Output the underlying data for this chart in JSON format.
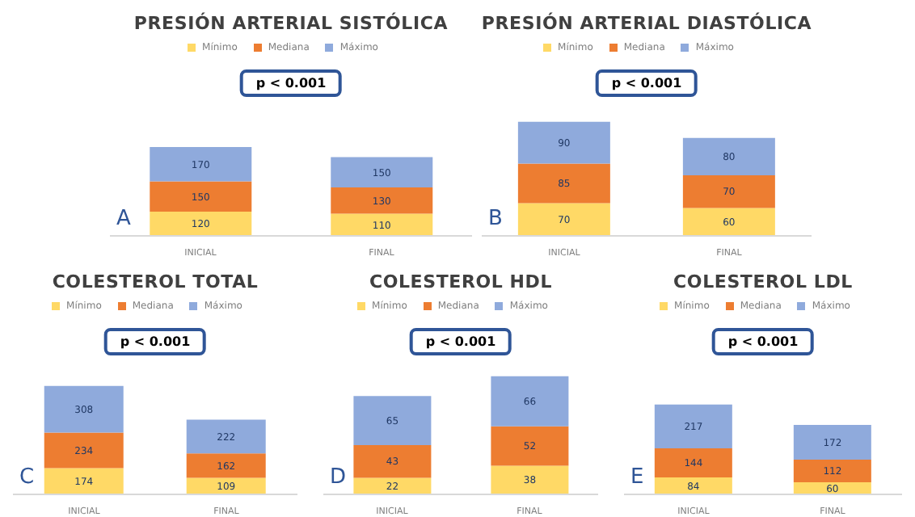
{
  "chart_data": [
    {
      "type": "bar",
      "title": "PRESIÓN ARTERIAL SISTÓLICA",
      "categories": [
        "INICIAL",
        "FINAL"
      ],
      "stacked": true,
      "data_labels": true,
      "legend": "top",
      "annotations": [
        "p < 0.001",
        "A"
      ],
      "series": [
        {
          "name": "Mínimo",
          "color": "#ffd966",
          "values": [
            120,
            110
          ]
        },
        {
          "name": "Mediana",
          "color": "#ed7d31",
          "values": [
            150,
            130
          ]
        },
        {
          "name": "Máximo",
          "color": "#8faadc",
          "values": [
            170,
            150
          ]
        }
      ]
    },
    {
      "type": "bar",
      "title": "PRESIÓN ARTERIAL DIASTÓLICA",
      "categories": [
        "INICIAL",
        "FINAL"
      ],
      "stacked": true,
      "data_labels": true,
      "legend": "top",
      "annotations": [
        "p < 0.001",
        "B"
      ],
      "series": [
        {
          "name": "Mínimo",
          "color": "#ffd966",
          "values": [
            70,
            60
          ]
        },
        {
          "name": "Mediana",
          "color": "#ed7d31",
          "values": [
            85,
            70
          ]
        },
        {
          "name": "Máximo",
          "color": "#8faadc",
          "values": [
            90,
            80
          ]
        }
      ]
    },
    {
      "type": "bar",
      "title": "COLESTEROL TOTAL",
      "categories": [
        "INICIAL",
        "FINAL"
      ],
      "stacked": true,
      "data_labels": true,
      "legend": "top",
      "annotations": [
        "p < 0.001",
        "C"
      ],
      "series": [
        {
          "name": "Mínimo",
          "color": "#ffd966",
          "values": [
            174,
            109
          ]
        },
        {
          "name": "Mediana",
          "color": "#ed7d31",
          "values": [
            234,
            162
          ]
        },
        {
          "name": "Máximo",
          "color": "#8faadc",
          "values": [
            308,
            222
          ]
        }
      ]
    },
    {
      "type": "bar",
      "title": "COLESTEROL HDL",
      "categories": [
        "INICIAL",
        "FINAL"
      ],
      "stacked": true,
      "data_labels": true,
      "legend": "top",
      "annotations": [
        "p < 0.001",
        "D"
      ],
      "series": [
        {
          "name": "Mínimo",
          "color": "#ffd966",
          "values": [
            22,
            38
          ]
        },
        {
          "name": "Mediana",
          "color": "#ed7d31",
          "values": [
            43,
            52
          ]
        },
        {
          "name": "Máximo",
          "color": "#8faadc",
          "values": [
            65,
            66
          ]
        }
      ]
    },
    {
      "type": "bar",
      "title": "COLESTEROL LDL",
      "categories": [
        "INICIAL",
        "FINAL"
      ],
      "stacked": true,
      "data_labels": true,
      "legend": "top",
      "annotations": [
        "p < 0.001",
        "E"
      ],
      "series": [
        {
          "name": "Mínimo",
          "color": "#ffd966",
          "values": [
            84,
            60
          ]
        },
        {
          "name": "Mediana",
          "color": "#ed7d31",
          "values": [
            144,
            112
          ]
        },
        {
          "name": "Máximo",
          "color": "#8faadc",
          "values": [
            217,
            172
          ]
        }
      ]
    }
  ]
}
